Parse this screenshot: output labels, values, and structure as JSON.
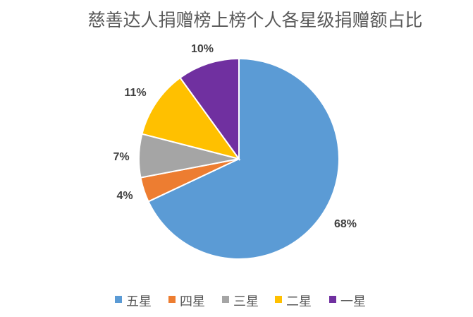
{
  "chart_data": {
    "type": "pie",
    "title": "慈善达人捐赠榜上榜个人各星级捐赠额占比",
    "categories": [
      "五星",
      "四星",
      "三星",
      "二星",
      "一星"
    ],
    "values": [
      68,
      4,
      7,
      11,
      10
    ],
    "data_labels": [
      "68%",
      "4%",
      "7%",
      "11%",
      "10%"
    ],
    "colors": [
      "#5B9BD5",
      "#ED7D31",
      "#A5A5A5",
      "#FFC000",
      "#7030A0"
    ],
    "legend_position": "bottom",
    "start_angle": "top",
    "direction": "clockwise"
  }
}
